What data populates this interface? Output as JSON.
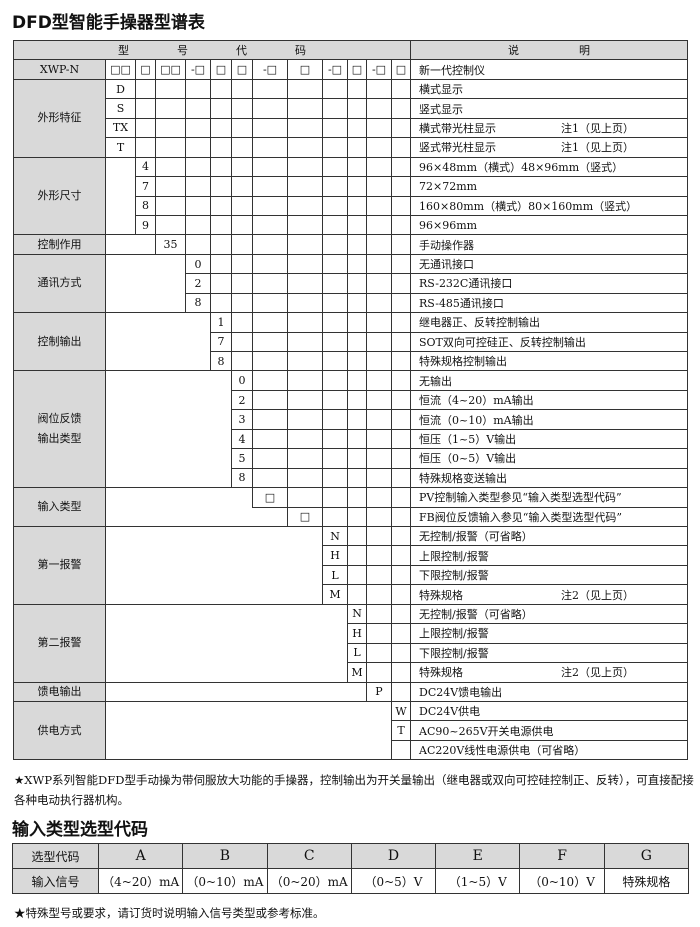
{
  "title": "DFD型智能手操器型谱表",
  "table": {
    "header_code": "型号代码",
    "header_desc": "说明",
    "model": {
      "label": "XWP-N",
      "codes": [
        "□□",
        "□",
        "□□",
        "-□",
        "□",
        "□",
        "-□",
        "□",
        "-□",
        "□",
        "-□",
        "□"
      ],
      "desc": "新一代控制仪"
    },
    "groups": [
      {
        "label": "外形特征",
        "rows": [
          {
            "code": "D",
            "desc": "横式显示"
          },
          {
            "code": "S",
            "desc": "竖式显示"
          },
          {
            "code": "TX",
            "desc": "横式带光柱显示",
            "note": "注1（见上页）"
          },
          {
            "code": "T",
            "desc": "竖式带光柱显示",
            "note": "注1（见上页）"
          }
        ]
      },
      {
        "label": "外形尺寸",
        "rows": [
          {
            "code": "4",
            "desc": "96×48mm（横式）48×96mm（竖式）"
          },
          {
            "code": "7",
            "desc": "72×72mm"
          },
          {
            "code": "8",
            "desc": "160×80mm（横式）80×160mm（竖式）"
          },
          {
            "code": "9",
            "desc": "96×96mm"
          }
        ]
      },
      {
        "label": "控制作用",
        "rows": [
          {
            "code": "35",
            "desc": "手动操作器"
          }
        ]
      },
      {
        "label": "通讯方式",
        "rows": [
          {
            "code": "0",
            "desc": "无通讯接口"
          },
          {
            "code": "2",
            "desc": "RS-232C通讯接口"
          },
          {
            "code": "8",
            "desc": "RS-485通讯接口"
          }
        ]
      },
      {
        "label": "控制输出",
        "rows": [
          {
            "code": "1",
            "desc": "继电器正、反转控制输出"
          },
          {
            "code": "7",
            "desc": "SOT双向可控硅正、反转控制输出"
          },
          {
            "code": "8",
            "desc": "特殊规格控制输出"
          }
        ]
      },
      {
        "label": "阀位反馈\n输出类型",
        "rows": [
          {
            "code": "0",
            "desc": "无输出"
          },
          {
            "code": "2",
            "desc": "恒流（4~20）mA输出"
          },
          {
            "code": "3",
            "desc": "恒流（0~10）mA输出"
          },
          {
            "code": "4",
            "desc": "恒压（1~5）V输出"
          },
          {
            "code": "5",
            "desc": "恒压（0~5）V输出"
          },
          {
            "code": "8",
            "desc": "特殊规格变送输出"
          }
        ]
      },
      {
        "label": "输入类型",
        "rows": [
          {
            "code": "□",
            "desc": "PV控制输入类型参见“输入类型选型代码”"
          },
          {
            "code": "□",
            "desc": "FB阀位反馈输入参见“输入类型选型代码”"
          }
        ]
      },
      {
        "label": "第一报警",
        "rows": [
          {
            "code": "N",
            "desc": "无控制/报警（可省略）"
          },
          {
            "code": "H",
            "desc": "上限控制/报警"
          },
          {
            "code": "L",
            "desc": "下限控制/报警"
          },
          {
            "code": "M",
            "desc": "特殊规格",
            "note": "注2（见上页）"
          }
        ]
      },
      {
        "label": "第二报警",
        "rows": [
          {
            "code": "N",
            "desc": "无控制/报警（可省略）"
          },
          {
            "code": "H",
            "desc": "上限控制/报警"
          },
          {
            "code": "L",
            "desc": "下限控制/报警"
          },
          {
            "code": "M",
            "desc": "特殊规格",
            "note": "注2（见上页）"
          }
        ]
      },
      {
        "label": "馈电输出",
        "rows": [
          {
            "code": "P",
            "desc": "DC24V馈电输出"
          }
        ]
      },
      {
        "label": "供电方式",
        "rows": [
          {
            "code": "W",
            "desc": "DC24V供电"
          },
          {
            "code": "T",
            "desc": "AC90~265V开关电源供电"
          },
          {
            "code": "",
            "desc": "AC220V线性电源供电（可省略）"
          }
        ]
      }
    ]
  },
  "note1": "★XWP系列智能DFD型手动操为带伺服放大功能的手操器，控制输出为开关量输出（继电器或双向可控硅控制正、反转），可直接配接各种电动执行器机构。",
  "title2": "输入类型选型代码",
  "input_table": {
    "row1_label": "选型代码",
    "row2_label": "输入信号",
    "codes": [
      "A",
      "B",
      "C",
      "D",
      "E",
      "F",
      "G"
    ],
    "signals": [
      "（4~20）mA",
      "（0~10）mA",
      "（0~20）mA",
      "（0~5）V",
      "（1~5）V",
      "（0~10）V",
      "特殊规格"
    ]
  },
  "note2": "★特殊型号或要求，请订货时说明输入信号类型或参考标准。"
}
